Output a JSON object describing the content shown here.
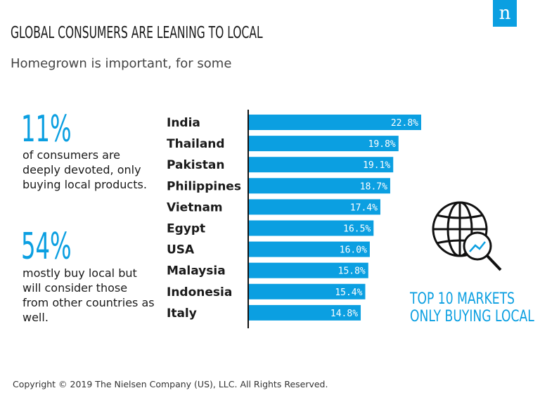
{
  "header": {
    "title": "GLOBAL CONSUMERS ARE LEANING TO LOCAL",
    "subtitle": "Homegrown is important, for some",
    "logo_text": "n",
    "brand_color": "#0b9fe1"
  },
  "stats": [
    {
      "value": "11%",
      "text": "of consumers are deeply devoted, only buying local products."
    },
    {
      "value": "54%",
      "text": "mostly buy local but will consider those from other countries as well."
    }
  ],
  "chart_data": {
    "type": "bar",
    "orientation": "horizontal",
    "title": "TOP 10 MARKETS ONLY BUYING LOCAL",
    "categories": [
      "India",
      "Thailand",
      "Pakistan",
      "Philippines",
      "Vietnam",
      "Egypt",
      "USA",
      "Malaysia",
      "Indonesia",
      "Italy"
    ],
    "values": [
      22.8,
      19.8,
      19.1,
      18.7,
      17.4,
      16.5,
      16.0,
      15.8,
      15.4,
      14.8
    ],
    "value_labels": [
      "22.8%",
      "19.8%",
      "19.1%",
      "18.7%",
      "17.4%",
      "16.5%",
      "16.0%",
      "15.8%",
      "15.4%",
      "14.8%"
    ],
    "xlim": [
      0,
      22.8
    ],
    "bar_color": "#0b9fe1",
    "grid": false,
    "icon": "globe-magnifier-icon"
  },
  "caption": {
    "line1": "TOP 10 MARKETS",
    "line2": "ONLY BUYING LOCAL"
  },
  "footer": "Copyright © 2019 The Nielsen Company (US), LLC. All Rights Reserved."
}
